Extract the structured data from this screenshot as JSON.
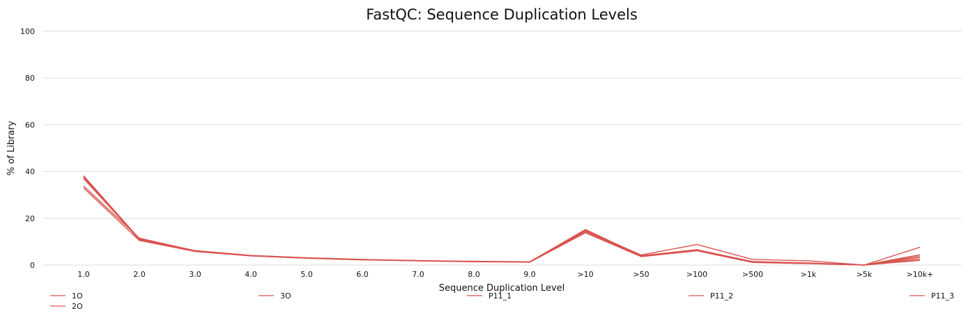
{
  "chart_data": {
    "type": "line",
    "title": "FastQC: Sequence Duplication Levels",
    "xlabel": "Sequence Duplication Level",
    "ylabel": "% of Library",
    "categories": [
      "1.0",
      "2.0",
      "3.0",
      "4.0",
      "5.0",
      "6.0",
      "7.0",
      "8.0",
      "9.0",
      ">10",
      ">50",
      ">100",
      ">500",
      ">1k",
      ">5k",
      ">10k+"
    ],
    "ylim": [
      0,
      100
    ],
    "yticks": [
      0,
      20,
      40,
      60,
      80,
      100
    ],
    "grid": true,
    "legend_position": "bottom",
    "line_color": "#d9534f",
    "grid_color": "#dddddd",
    "series": [
      {
        "name": "1O",
        "values": [
          37.5,
          10.8,
          6.0,
          4.0,
          3.0,
          2.3,
          1.8,
          1.5,
          1.3,
          14.5,
          3.8,
          6.3,
          1.2,
          0.7,
          0.0,
          2.5
        ]
      },
      {
        "name": "2O",
        "values": [
          38.2,
          11.2,
          6.2,
          4.1,
          3.1,
          2.4,
          1.9,
          1.6,
          1.4,
          15.2,
          4.0,
          6.6,
          1.3,
          0.8,
          0.0,
          3.2
        ]
      },
      {
        "name": "3O",
        "values": [
          33.0,
          10.5,
          5.8,
          3.9,
          2.9,
          2.2,
          1.8,
          1.4,
          1.2,
          13.8,
          3.6,
          6.1,
          1.1,
          0.6,
          0.0,
          2.0
        ]
      },
      {
        "name": "P11_1",
        "values": [
          37.0,
          11.0,
          6.0,
          4.0,
          3.0,
          2.3,
          1.8,
          1.5,
          1.3,
          14.8,
          4.3,
          8.8,
          2.4,
          1.8,
          0.0,
          7.6
        ]
      },
      {
        "name": "P11_2",
        "values": [
          33.8,
          11.5,
          6.1,
          4.1,
          3.1,
          2.4,
          1.9,
          1.5,
          1.3,
          14.0,
          3.7,
          6.5,
          1.5,
          0.9,
          0.0,
          4.4
        ]
      },
      {
        "name": "P11_3",
        "values": [
          37.8,
          10.9,
          6.0,
          4.0,
          3.0,
          2.3,
          1.8,
          1.5,
          1.3,
          14.6,
          3.9,
          6.4,
          1.2,
          0.7,
          0.0,
          3.8
        ]
      }
    ]
  }
}
